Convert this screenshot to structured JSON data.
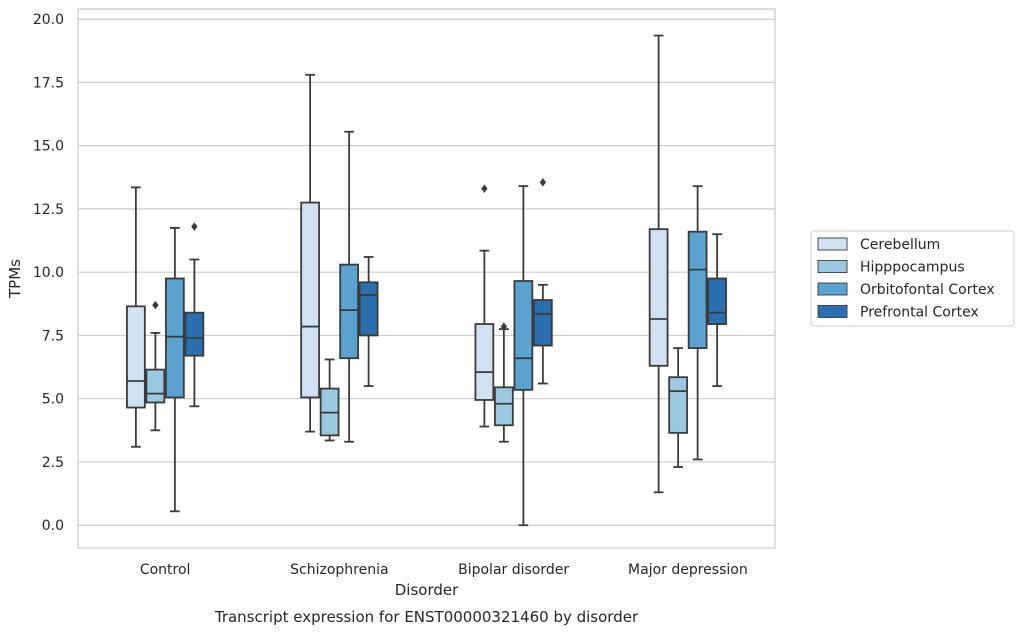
{
  "chart_data": {
    "type": "boxplot",
    "title": "",
    "caption": "Transcript expression for ENST00000321460 by disorder",
    "xlabel": "Disorder",
    "ylabel": "TPMs",
    "ylim": [
      -0.9,
      20.4
    ],
    "yticks": [
      "0.0",
      "2.5",
      "5.0",
      "7.5",
      "10.0",
      "12.5",
      "15.0",
      "17.5",
      "20.0"
    ],
    "grid": true,
    "legend_position": "right",
    "categories": [
      "Control",
      "Schizophrenia",
      "Bipolar disorder",
      "Major depression"
    ],
    "series": [
      {
        "name": "Cerebellum",
        "color": "#d0e1f2",
        "boxes": [
          {
            "whislo": 3.1,
            "q1": 4.65,
            "med": 5.7,
            "q3": 8.65,
            "whishi": 13.35,
            "fliers": []
          },
          {
            "whislo": 3.7,
            "q1": 5.05,
            "med": 7.85,
            "q3": 12.75,
            "whishi": 17.8,
            "fliers": []
          },
          {
            "whislo": 3.9,
            "q1": 4.95,
            "med": 6.05,
            "q3": 7.95,
            "whishi": 10.85,
            "fliers": [
              13.3
            ]
          },
          {
            "whislo": 1.3,
            "q1": 6.3,
            "med": 8.15,
            "q3": 11.7,
            "whishi": 19.35,
            "fliers": []
          }
        ]
      },
      {
        "name": "Hipppocampus",
        "color": "#9ac8e0",
        "boxes": [
          {
            "whislo": 3.75,
            "q1": 4.85,
            "med": 5.2,
            "q3": 6.15,
            "whishi": 7.6,
            "fliers": [
              8.7
            ]
          },
          {
            "whislo": 3.35,
            "q1": 3.55,
            "med": 4.45,
            "q3": 5.4,
            "whishi": 6.55,
            "fliers": []
          },
          {
            "whislo": 3.3,
            "q1": 3.95,
            "med": 4.8,
            "q3": 5.45,
            "whishi": 7.75,
            "fliers": [
              7.85
            ]
          },
          {
            "whislo": 2.3,
            "q1": 3.65,
            "med": 5.3,
            "q3": 5.85,
            "whishi": 7.0,
            "fliers": []
          }
        ]
      },
      {
        "name": "Orbitofontal Cortex",
        "color": "#5aa2cf",
        "boxes": [
          {
            "whislo": 0.55,
            "q1": 5.05,
            "med": 7.45,
            "q3": 9.75,
            "whishi": 11.75,
            "fliers": []
          },
          {
            "whislo": 3.3,
            "q1": 6.6,
            "med": 8.5,
            "q3": 10.3,
            "whishi": 15.55,
            "fliers": []
          },
          {
            "whislo": 0.0,
            "q1": 5.35,
            "med": 6.6,
            "q3": 9.65,
            "whishi": 13.4,
            "fliers": []
          },
          {
            "whislo": 2.6,
            "q1": 7.0,
            "med": 10.1,
            "q3": 11.6,
            "whishi": 13.4,
            "fliers": []
          }
        ]
      },
      {
        "name": "Prefrontal Cortex",
        "color": "#2a6fb0",
        "boxes": [
          {
            "whislo": 4.7,
            "q1": 6.7,
            "med": 7.4,
            "q3": 8.4,
            "whishi": 10.5,
            "fliers": [
              11.8
            ]
          },
          {
            "whislo": 5.5,
            "q1": 7.5,
            "med": 9.1,
            "q3": 9.6,
            "whishi": 10.6,
            "fliers": []
          },
          {
            "whislo": 5.6,
            "q1": 7.1,
            "med": 8.35,
            "q3": 8.9,
            "whishi": 9.5,
            "fliers": [
              13.55
            ]
          },
          {
            "whislo": 5.5,
            "q1": 7.95,
            "med": 8.4,
            "q3": 9.75,
            "whishi": 11.5,
            "fliers": []
          }
        ]
      }
    ]
  }
}
